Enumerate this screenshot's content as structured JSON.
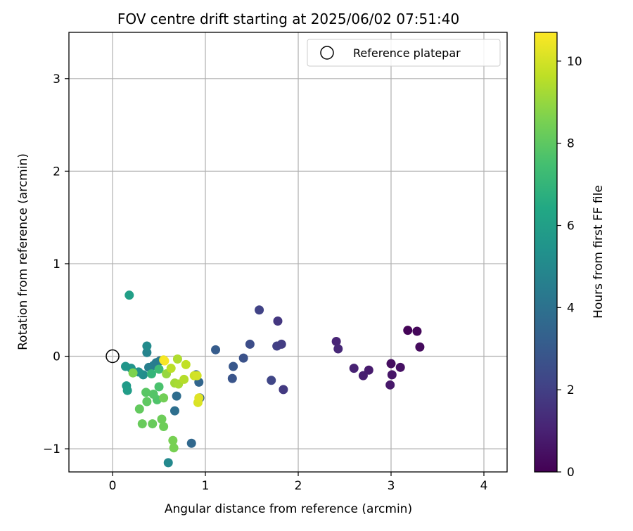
{
  "chart_data": {
    "type": "scatter",
    "title": "FOV centre drift starting at 2025/06/02 07:51:40",
    "xlabel": "Angular distance from reference (arcmin)",
    "ylabel": "Rotation from reference (arcmin)",
    "xlim": [
      -0.47,
      4.25
    ],
    "ylim": [
      -1.25,
      3.5
    ],
    "xticks": [
      0,
      1,
      2,
      3,
      4
    ],
    "yticks": [
      -1,
      0,
      1,
      2,
      3
    ],
    "xtick_labels": [
      "0",
      "1",
      "2",
      "3",
      "4"
    ],
    "ytick_labels": [
      "−1",
      "0",
      "1",
      "2",
      "3"
    ],
    "grid": true,
    "legend": {
      "placement": "top-right",
      "entries": [
        {
          "label": "Reference platepar",
          "marker": "open-circle"
        }
      ]
    },
    "reference_point": {
      "x": 0,
      "y": 0
    },
    "colorbar": {
      "label": "Hours from first FF file",
      "colormap": "viridis",
      "range": [
        0,
        10.7
      ],
      "ticks": [
        0,
        2,
        4,
        6,
        8,
        10
      ],
      "tick_labels": [
        "0",
        "2",
        "4",
        "6",
        "8",
        "10"
      ]
    },
    "points": [
      {
        "x": 3.18,
        "y": 0.28,
        "h": 0.1
      },
      {
        "x": 3.28,
        "y": 0.27,
        "h": 0.2
      },
      {
        "x": 3.31,
        "y": 0.1,
        "h": 0.3
      },
      {
        "x": 3.0,
        "y": -0.08,
        "h": 0.4
      },
      {
        "x": 3.1,
        "y": -0.12,
        "h": 0.5
      },
      {
        "x": 3.01,
        "y": -0.2,
        "h": 0.6
      },
      {
        "x": 2.99,
        "y": -0.31,
        "h": 0.7
      },
      {
        "x": 2.76,
        "y": -0.15,
        "h": 0.8
      },
      {
        "x": 2.7,
        "y": -0.21,
        "h": 0.9
      },
      {
        "x": 2.6,
        "y": -0.13,
        "h": 1.0
      },
      {
        "x": 2.41,
        "y": 0.16,
        "h": 1.1
      },
      {
        "x": 2.43,
        "y": 0.08,
        "h": 1.2
      },
      {
        "x": 1.78,
        "y": 0.38,
        "h": 1.7
      },
      {
        "x": 1.58,
        "y": 0.5,
        "h": 2.1
      },
      {
        "x": 1.77,
        "y": 0.11,
        "h": 2.0
      },
      {
        "x": 1.82,
        "y": 0.13,
        "h": 1.9
      },
      {
        "x": 1.84,
        "y": -0.36,
        "h": 1.8
      },
      {
        "x": 1.71,
        "y": -0.26,
        "h": 2.2
      },
      {
        "x": 1.48,
        "y": 0.13,
        "h": 2.5
      },
      {
        "x": 1.41,
        "y": -0.02,
        "h": 2.7
      },
      {
        "x": 1.3,
        "y": -0.11,
        "h": 2.9
      },
      {
        "x": 1.29,
        "y": -0.24,
        "h": 2.8
      },
      {
        "x": 1.11,
        "y": 0.07,
        "h": 3.1
      },
      {
        "x": 0.94,
        "y": -0.45,
        "h": 3.3
      },
      {
        "x": 0.9,
        "y": -0.2,
        "h": 3.4
      },
      {
        "x": 0.93,
        "y": -0.28,
        "h": 3.5
      },
      {
        "x": 0.85,
        "y": -0.94,
        "h": 3.6
      },
      {
        "x": 0.69,
        "y": -0.43,
        "h": 3.8
      },
      {
        "x": 0.67,
        "y": -0.59,
        "h": 3.9
      },
      {
        "x": 0.6,
        "y": -1.15,
        "h": 5.0
      },
      {
        "x": 0.51,
        "y": -0.05,
        "h": 4.2
      },
      {
        "x": 0.47,
        "y": -0.07,
        "h": 4.4
      },
      {
        "x": 0.44,
        "y": -0.1,
        "h": 4.5
      },
      {
        "x": 0.39,
        "y": -0.12,
        "h": 4.6
      },
      {
        "x": 0.37,
        "y": 0.04,
        "h": 4.8
      },
      {
        "x": 0.37,
        "y": 0.11,
        "h": 5.1
      },
      {
        "x": 0.33,
        "y": -0.2,
        "h": 5.2
      },
      {
        "x": 0.28,
        "y": -0.17,
        "h": 5.3
      },
      {
        "x": 0.2,
        "y": -0.13,
        "h": 5.5
      },
      {
        "x": 0.14,
        "y": -0.11,
        "h": 5.6
      },
      {
        "x": 0.15,
        "y": -0.32,
        "h": 5.8
      },
      {
        "x": 0.16,
        "y": -0.37,
        "h": 5.9
      },
      {
        "x": 0.18,
        "y": 0.66,
        "h": 6.0
      },
      {
        "x": 0.42,
        "y": -0.19,
        "h": 7.0
      },
      {
        "x": 0.5,
        "y": -0.14,
        "h": 7.3
      },
      {
        "x": 0.5,
        "y": -0.33,
        "h": 7.6
      },
      {
        "x": 0.48,
        "y": -0.47,
        "h": 7.7
      },
      {
        "x": 0.44,
        "y": -0.41,
        "h": 7.8
      },
      {
        "x": 0.36,
        "y": -0.39,
        "h": 7.9
      },
      {
        "x": 0.37,
        "y": -0.49,
        "h": 8.0
      },
      {
        "x": 0.29,
        "y": -0.57,
        "h": 8.1
      },
      {
        "x": 0.32,
        "y": -0.73,
        "h": 8.2
      },
      {
        "x": 0.43,
        "y": -0.73,
        "h": 8.2
      },
      {
        "x": 0.53,
        "y": -0.68,
        "h": 8.3
      },
      {
        "x": 0.55,
        "y": -0.76,
        "h": 8.3
      },
      {
        "x": 0.55,
        "y": -0.45,
        "h": 8.4
      },
      {
        "x": 0.65,
        "y": -0.91,
        "h": 8.5
      },
      {
        "x": 0.66,
        "y": -0.99,
        "h": 8.5
      },
      {
        "x": 0.22,
        "y": -0.18,
        "h": 8.6
      },
      {
        "x": 0.58,
        "y": -0.19,
        "h": 9.0
      },
      {
        "x": 0.67,
        "y": -0.29,
        "h": 9.2
      },
      {
        "x": 0.71,
        "y": -0.3,
        "h": 9.3
      },
      {
        "x": 0.7,
        "y": -0.03,
        "h": 9.4
      },
      {
        "x": 0.77,
        "y": -0.25,
        "h": 9.5
      },
      {
        "x": 0.63,
        "y": -0.13,
        "h": 9.6
      },
      {
        "x": 0.79,
        "y": -0.09,
        "h": 9.7
      },
      {
        "x": 0.88,
        "y": -0.21,
        "h": 9.9
      },
      {
        "x": 0.91,
        "y": -0.21,
        "h": 10.0
      },
      {
        "x": 0.92,
        "y": -0.5,
        "h": 10.1
      },
      {
        "x": 0.93,
        "y": -0.45,
        "h": 10.2
      },
      {
        "x": 0.55,
        "y": -0.04,
        "h": 10.4
      },
      {
        "x": 0.56,
        "y": -0.05,
        "h": 10.6
      }
    ]
  }
}
